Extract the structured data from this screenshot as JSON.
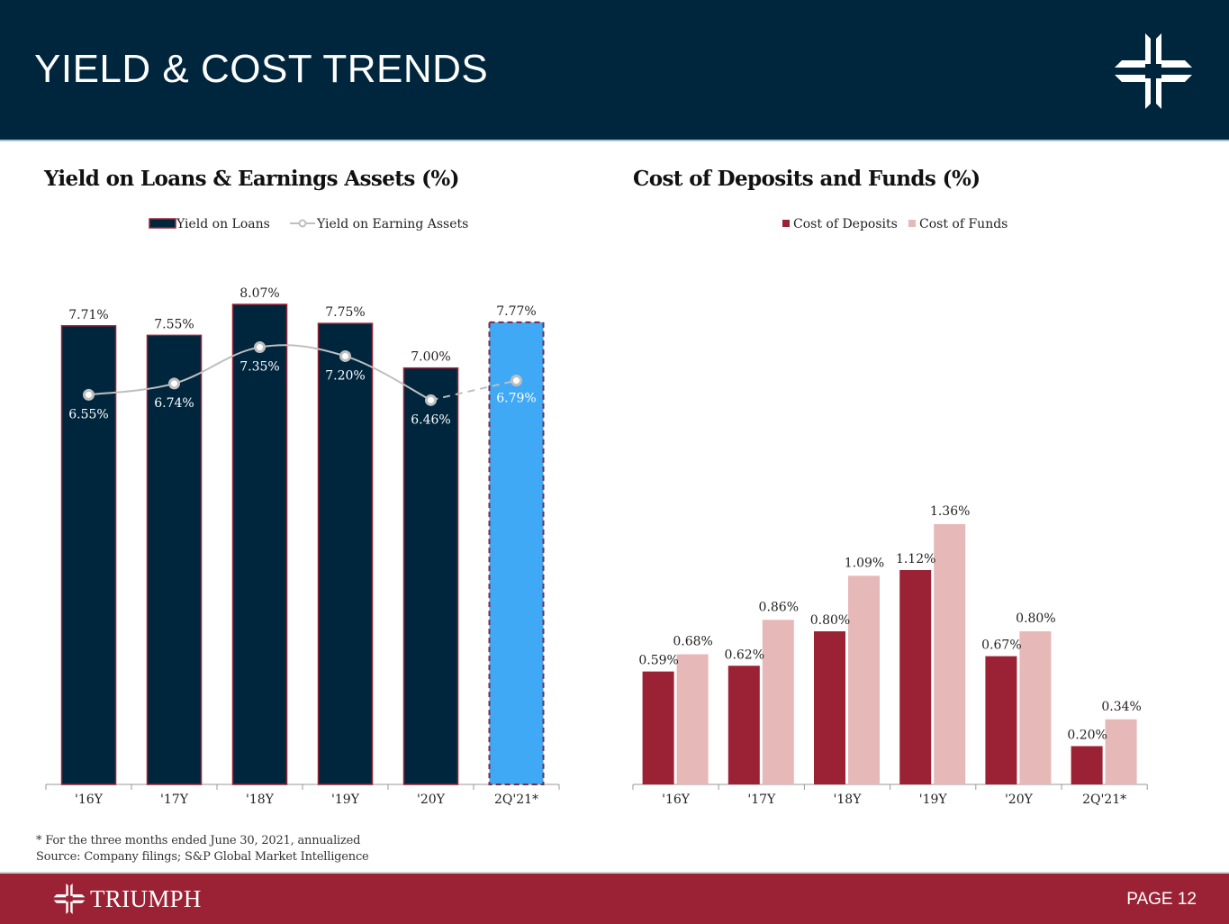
{
  "header": {
    "title": "YIELD & COST TRENDS",
    "logo_icon": "triumph-cross-icon"
  },
  "footer": {
    "brand": "TRIUMPH",
    "page": "PAGE 12"
  },
  "footnotes": [
    "* For the three months ended June 30, 2021, annualized",
    "Source: Company filings; S&P Global Market Intelligence"
  ],
  "colors": {
    "navy": "#00263e",
    "bright_blue": "#3fa9f5",
    "maroon": "#9b2235",
    "pink": "#e6b8b8",
    "line_gray": "#bfbfbf"
  },
  "chart_data": [
    {
      "type": "bar+line",
      "title": "Yield on Loans & Earnings Assets (%)",
      "categories": [
        "'16Y",
        "'17Y",
        "'18Y",
        "'19Y",
        "'20Y",
        "2Q'21*"
      ],
      "series": [
        {
          "name": "Yield on Loans",
          "kind": "bar",
          "values": [
            7.71,
            7.55,
            8.07,
            7.75,
            7.0,
            7.77
          ],
          "labels": [
            "7.71%",
            "7.55%",
            "8.07%",
            "7.75%",
            "7.00%",
            "7.77%"
          ]
        },
        {
          "name": "Yield on Earning Assets",
          "kind": "line",
          "values": [
            6.55,
            6.74,
            7.35,
            7.2,
            6.46,
            6.79
          ],
          "labels": [
            "6.55%",
            "6.74%",
            "7.35%",
            "7.20%",
            "6.46%",
            "6.79%"
          ]
        }
      ],
      "highlight_last": true,
      "legend_position": "top",
      "xlabel": "",
      "ylabel": "",
      "ylim": [
        0,
        8.07
      ],
      "grid": false
    },
    {
      "type": "bar",
      "title": "Cost of Deposits and Funds (%)",
      "categories": [
        "'16Y",
        "'17Y",
        "'18Y",
        "'19Y",
        "'20Y",
        "2Q'21*"
      ],
      "series": [
        {
          "name": "Cost of Deposits",
          "values": [
            0.59,
            0.62,
            0.8,
            1.12,
            0.67,
            0.2
          ],
          "labels": [
            "0.59%",
            "0.62%",
            "0.80%",
            "1.12%",
            "0.67%",
            "0.20%"
          ]
        },
        {
          "name": "Cost of Funds",
          "values": [
            0.68,
            0.86,
            1.09,
            1.36,
            0.8,
            0.34
          ],
          "labels": [
            "0.68%",
            "0.86%",
            "1.09%",
            "1.36%",
            "0.80%",
            "0.34%"
          ]
        }
      ],
      "legend_position": "top",
      "xlabel": "",
      "ylabel": "",
      "ylim": [
        0,
        1.36
      ],
      "grid": false
    }
  ]
}
